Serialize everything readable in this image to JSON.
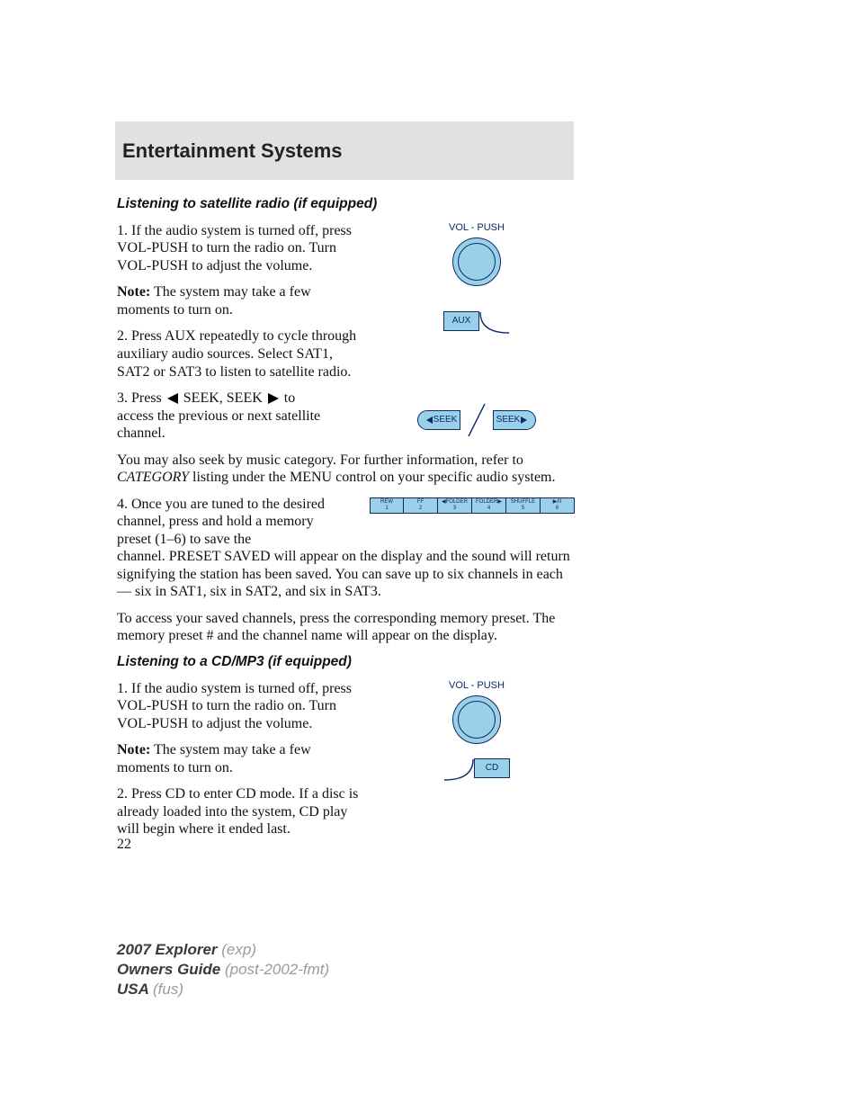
{
  "header": {
    "title": "Entertainment Systems"
  },
  "sections": {
    "sat": {
      "heading": "Listening to satellite radio (if equipped)",
      "p1": "1. If the audio system is turned off, press VOL-PUSH to turn the radio on. Turn VOL-PUSH to adjust the volume.",
      "note_label": "Note:",
      "note_body": " The system may take a few moments to turn on.",
      "p2": "2. Press AUX repeatedly to cycle through auxiliary audio sources. Select SAT1, SAT2 or SAT3 to listen to satellite radio.",
      "p3a": "3. Press ",
      "p3b": " SEEK, SEEK ",
      "p3c": " to",
      "p3d": "access the previous or next satellite channel.",
      "p4a": "You may also seek by music category. For further information, refer to ",
      "p4_em": "CATEGORY",
      "p4b": " listing under the MENU control on your specific audio system.",
      "p5a": "4. Once you are tuned to the desired channel, press and hold a memory preset (1–6) to save the",
      "p5b": "channel. PRESET SAVED will appear on the display and the sound will return signifying the station has been saved. You can save up to six channels in each — six in SAT1, six in SAT2, and six in SAT3.",
      "p6": "To access your saved channels, press the corresponding memory preset. The memory preset # and the channel name will appear on the display."
    },
    "cd": {
      "heading": "Listening to a CD/MP3 (if equipped)",
      "p1": "1. If the audio system is turned off, press VOL-PUSH to turn the radio on. Turn VOL-PUSH to adjust the volume.",
      "note_label": "Note:",
      "note_body": " The system may take a few moments to turn on.",
      "p2": "2. Press CD to enter CD mode. If a disc is already loaded into the system, CD play will begin where it ended last."
    }
  },
  "figs": {
    "vol_label": "VOL - PUSH",
    "aux_label": "AUX",
    "cd_label": "CD",
    "seek_left": "SEEK",
    "seek_right": "SEEK",
    "knob_fill": "#9bd1e8",
    "stroke": "#0a2a6a",
    "presets": [
      {
        "top": "REW",
        "bot": "1"
      },
      {
        "top": "FF",
        "bot": "2"
      },
      {
        "top": "◀FOLDER",
        "bot": "3"
      },
      {
        "top": "FOLDER▶",
        "bot": "4"
      },
      {
        "top": "SHUFFLE",
        "bot": "5"
      },
      {
        "top": "▶/II",
        "bot": "6"
      }
    ]
  },
  "page_number": "22",
  "footer": {
    "l1a": "2007 Explorer ",
    "l1b": "(exp)",
    "l2a": "Owners Guide ",
    "l2b": "(post-2002-fmt)",
    "l3a": "USA ",
    "l3b": "(fus)"
  }
}
